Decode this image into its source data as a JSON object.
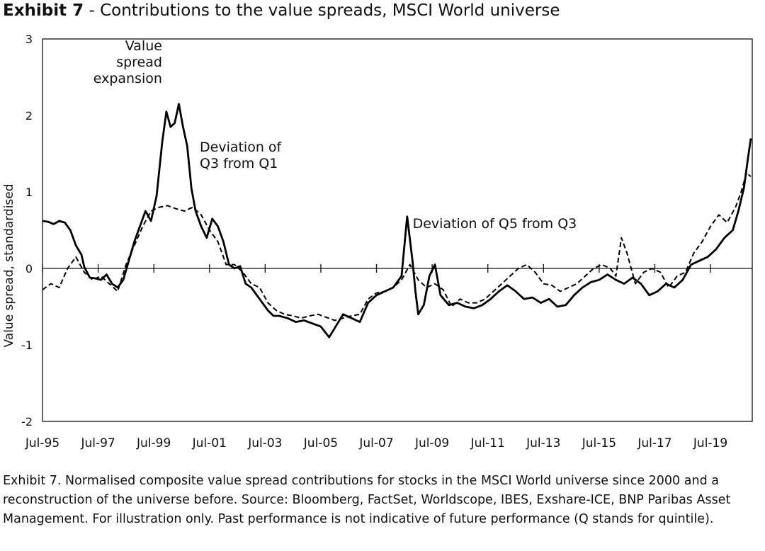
{
  "title_prefix": "Exhibit 7",
  "title_rest": " - Contributions to the value spreads, MSCI World universe",
  "caption": "Exhibit 7. Normalised composite value spread contributions for stocks in the MSCI World universe since 2000 and a reconstruction of the universe before. Source: Bloomberg, FactSet, Worldscope, IBES, Exshare-ICE, BNP Paribas Asset Management. For illustration only. Past performance is not indicative of future performance (Q stands for quintile).",
  "chart_data": {
    "type": "line",
    "title": "Contributions to the value spreads, MSCI World universe",
    "xlabel": "",
    "ylabel": "Value spread, standardised",
    "xlim": [
      1995.5,
      2021.0
    ],
    "ylim": [
      -2,
      3
    ],
    "yticks": [
      -2,
      -1,
      0,
      1,
      2,
      3
    ],
    "xticks": [
      {
        "label": "Jul-95",
        "x": 1995.5
      },
      {
        "label": "Jul-97",
        "x": 1997.5
      },
      {
        "label": "Jul-99",
        "x": 1999.5
      },
      {
        "label": "Jul-01",
        "x": 2001.5
      },
      {
        "label": "Jul-03",
        "x": 2003.5
      },
      {
        "label": "Jul-05",
        "x": 2005.5
      },
      {
        "label": "Jul-07",
        "x": 2007.5
      },
      {
        "label": "Jul-09",
        "x": 2009.5
      },
      {
        "label": "Jul-11",
        "x": 2011.5
      },
      {
        "label": "Jul-13",
        "x": 2013.5
      },
      {
        "label": "Jul-15",
        "x": 2015.5
      },
      {
        "label": "Jul-17",
        "x": 2017.5
      },
      {
        "label": "Jul-19",
        "x": 2019.5
      }
    ],
    "grid": false,
    "zero_line": true,
    "annotations": [
      {
        "lines": [
          "Value",
          "spread",
          "expansion"
        ],
        "x": 1999.8,
        "y": 2.85,
        "align": "end"
      },
      {
        "lines": [
          "Deviation of",
          "Q3 from Q1"
        ],
        "x": 2001.15,
        "y": 1.53,
        "align": "start"
      },
      {
        "lines": [
          "Deviation of Q5 from Q3"
        ],
        "x": 2008.8,
        "y": 0.53,
        "align": "start"
      }
    ],
    "series": [
      {
        "name": "Deviation of Q3 from Q1",
        "style": "solid",
        "x": [
          1995.5,
          1995.7,
          1995.9,
          1996.1,
          1996.3,
          1996.5,
          1996.7,
          1996.9,
          1997.0,
          1997.2,
          1997.4,
          1997.6,
          1997.8,
          1998.0,
          1998.2,
          1998.4,
          1998.6,
          1998.8,
          1999.0,
          1999.2,
          1999.4,
          1999.6,
          1999.8,
          1999.95,
          2000.1,
          2000.25,
          2000.4,
          2000.55,
          2000.7,
          2000.85,
          2001.0,
          2001.2,
          2001.4,
          2001.6,
          2001.8,
          2002.0,
          2002.2,
          2002.4,
          2002.6,
          2002.8,
          2003.0,
          2003.2,
          2003.4,
          2003.6,
          2003.8,
          2004.0,
          2004.3,
          2004.6,
          2004.9,
          2005.2,
          2005.5,
          2005.8,
          2006.0,
          2006.3,
          2006.6,
          2006.9,
          2007.2,
          2007.5,
          2007.8,
          2008.1,
          2008.4,
          2008.6,
          2008.8,
          2008.9,
          2009.0,
          2009.2,
          2009.4,
          2009.6,
          2009.8,
          2010.1,
          2010.4,
          2010.7,
          2011.0,
          2011.3,
          2011.6,
          2011.9,
          2012.2,
          2012.5,
          2012.8,
          2013.1,
          2013.4,
          2013.7,
          2014.0,
          2014.3,
          2014.6,
          2014.9,
          2015.2,
          2015.5,
          2015.8,
          2016.1,
          2016.4,
          2016.7,
          2017.0,
          2017.3,
          2017.6,
          2017.9,
          2018.2,
          2018.5,
          2018.8,
          2019.1,
          2019.4,
          2019.7,
          2020.0,
          2020.3,
          2020.5,
          2020.7,
          2020.85,
          2020.95
        ],
        "y": [
          0.62,
          0.61,
          0.58,
          0.62,
          0.6,
          0.5,
          0.3,
          0.18,
          0.02,
          -0.12,
          -0.13,
          -0.15,
          -0.08,
          -0.2,
          -0.25,
          -0.15,
          0.1,
          0.35,
          0.55,
          0.75,
          0.62,
          0.95,
          1.65,
          2.05,
          1.85,
          1.9,
          2.15,
          1.85,
          1.6,
          1.05,
          0.75,
          0.55,
          0.4,
          0.65,
          0.55,
          0.35,
          0.05,
          0.0,
          0.03,
          -0.2,
          -0.25,
          -0.35,
          -0.45,
          -0.55,
          -0.62,
          -0.62,
          -0.65,
          -0.7,
          -0.68,
          -0.72,
          -0.76,
          -0.9,
          -0.78,
          -0.6,
          -0.65,
          -0.7,
          -0.45,
          -0.35,
          -0.3,
          -0.25,
          -0.1,
          0.68,
          0.08,
          -0.3,
          -0.6,
          -0.48,
          -0.1,
          0.05,
          -0.35,
          -0.48,
          -0.45,
          -0.5,
          -0.52,
          -0.48,
          -0.4,
          -0.3,
          -0.22,
          -0.3,
          -0.4,
          -0.38,
          -0.45,
          -0.4,
          -0.5,
          -0.48,
          -0.35,
          -0.25,
          -0.18,
          -0.15,
          -0.08,
          -0.15,
          -0.2,
          -0.12,
          -0.2,
          -0.35,
          -0.3,
          -0.2,
          -0.25,
          -0.15,
          0.05,
          0.1,
          0.15,
          0.25,
          0.4,
          0.5,
          0.75,
          1.05,
          1.45,
          1.7
        ]
      },
      {
        "name": "Deviation of Q5 from Q3",
        "style": "dashed",
        "x": [
          1995.5,
          1995.8,
          1996.1,
          1996.4,
          1996.7,
          1997.0,
          1997.3,
          1997.6,
          1997.9,
          1998.2,
          1998.5,
          1998.8,
          1999.1,
          1999.4,
          1999.7,
          2000.0,
          2000.3,
          2000.6,
          2000.9,
          2001.2,
          2001.5,
          2001.8,
          2002.1,
          2002.4,
          2002.7,
          2003.0,
          2003.3,
          2003.6,
          2003.9,
          2004.2,
          2004.5,
          2004.8,
          2005.1,
          2005.4,
          2005.7,
          2006.0,
          2006.3,
          2006.6,
          2006.9,
          2007.2,
          2007.5,
          2007.8,
          2008.1,
          2008.4,
          2008.7,
          2009.0,
          2009.3,
          2009.6,
          2009.9,
          2010.2,
          2010.5,
          2010.8,
          2011.1,
          2011.4,
          2011.7,
          2012.0,
          2012.3,
          2012.6,
          2012.9,
          2013.2,
          2013.5,
          2013.8,
          2014.1,
          2014.4,
          2014.7,
          2015.0,
          2015.3,
          2015.6,
          2015.9,
          2016.1,
          2016.3,
          2016.5,
          2016.8,
          2017.1,
          2017.4,
          2017.7,
          2018.0,
          2018.3,
          2018.6,
          2018.9,
          2019.2,
          2019.5,
          2019.8,
          2020.1,
          2020.4,
          2020.6,
          2020.8,
          2020.95
        ],
        "y": [
          -0.28,
          -0.2,
          -0.25,
          0.0,
          0.15,
          -0.05,
          -0.15,
          -0.1,
          -0.2,
          -0.3,
          0.05,
          0.3,
          0.55,
          0.75,
          0.8,
          0.82,
          0.78,
          0.75,
          0.8,
          0.7,
          0.5,
          0.35,
          0.05,
          0.05,
          -0.05,
          -0.2,
          -0.25,
          -0.45,
          -0.55,
          -0.6,
          -0.62,
          -0.65,
          -0.62,
          -0.6,
          -0.64,
          -0.68,
          -0.65,
          -0.62,
          -0.6,
          -0.4,
          -0.32,
          -0.3,
          -0.25,
          -0.15,
          0.05,
          -0.15,
          -0.25,
          -0.2,
          -0.28,
          -0.5,
          -0.4,
          -0.45,
          -0.45,
          -0.4,
          -0.3,
          -0.2,
          -0.1,
          0.0,
          0.05,
          -0.05,
          -0.2,
          -0.22,
          -0.3,
          -0.25,
          -0.2,
          -0.1,
          0.0,
          0.05,
          0.0,
          -0.1,
          0.4,
          0.2,
          -0.2,
          -0.05,
          0.0,
          -0.05,
          -0.25,
          -0.1,
          -0.05,
          0.2,
          0.35,
          0.55,
          0.7,
          0.6,
          0.8,
          1.0,
          1.25,
          1.2
        ]
      }
    ]
  }
}
